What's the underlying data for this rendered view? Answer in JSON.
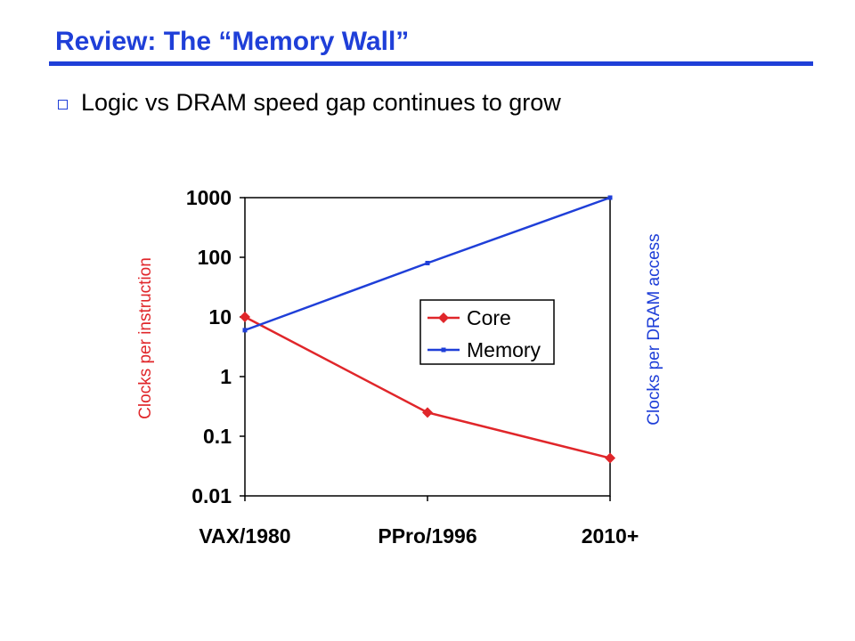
{
  "slide": {
    "title": "Review: The “Memory Wall”",
    "bullet": "Logic vs DRAM speed gap continues to grow",
    "title_color": "#1f3fd8"
  },
  "chart_data": {
    "type": "line",
    "title": "",
    "yscale": "log",
    "ylim": [
      0.01,
      1000
    ],
    "yticks": [
      "1000",
      "100",
      "10",
      "1",
      "0.1",
      "0.01"
    ],
    "ytick_values": [
      1000,
      100,
      10,
      1,
      0.1,
      0.01
    ],
    "categories": [
      "VAX/1980",
      "PPro/1996",
      "2010+"
    ],
    "ylabel_left": "Clocks per instruction",
    "ylabel_right": "Clocks per DRAM access",
    "legend_position": "center",
    "grid": false,
    "series": [
      {
        "name": "Core",
        "color": "#e0262a",
        "marker": "diamond",
        "values": [
          10,
          0.25,
          0.043
        ]
      },
      {
        "name": "Memory",
        "color": "#1f3fd8",
        "marker": "square",
        "values": [
          6,
          80,
          1000
        ]
      }
    ]
  }
}
